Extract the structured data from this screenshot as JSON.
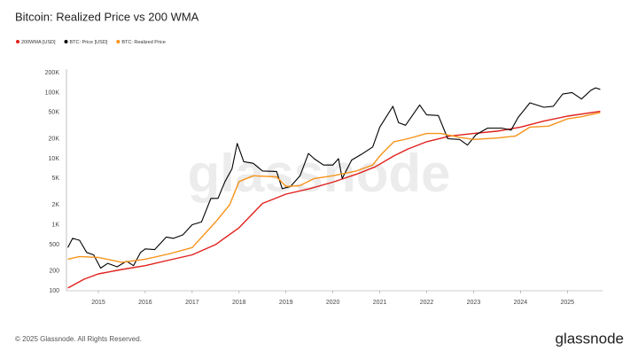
{
  "chart_data": {
    "type": "line",
    "title": "Bitcoin: Realized Price vs 200 WMA",
    "log_scale_y": true,
    "xlim": [
      2014.32,
      2025.75
    ],
    "xticks": [
      2015,
      2016,
      2017,
      2018,
      2019,
      2020,
      2021,
      2022,
      2023,
      2024,
      2025
    ],
    "ylim": [
      100,
      200000
    ],
    "yticks": [
      100,
      200,
      500,
      {
        "value": 1000,
        "label": "1K"
      },
      {
        "value": 2000,
        "label": "2K"
      },
      {
        "value": 5000,
        "label": "5K"
      },
      {
        "value": 10000,
        "label": "10K"
      },
      {
        "value": 20000,
        "label": "20K"
      },
      {
        "value": 50000,
        "label": "50K"
      },
      {
        "value": 100000,
        "label": "100K"
      },
      {
        "value": 200000,
        "label": "200K"
      }
    ],
    "series": [
      {
        "name": "200WMA [USD]",
        "color": "#e0201c",
        "x": [
          2014.35,
          2014.7,
          2015.0,
          2015.5,
          2016.0,
          2016.5,
          2017.0,
          2017.5,
          2018.0,
          2018.3,
          2018.5,
          2019.0,
          2019.5,
          2020.0,
          2020.5,
          2020.9,
          2021.3,
          2021.6,
          2022.0,
          2022.5,
          2023.0,
          2023.5,
          2024.0,
          2024.5,
          2025.0,
          2025.7
        ],
        "values": [
          110,
          150,
          180,
          210,
          240,
          290,
          350,
          500,
          900,
          1500,
          2100,
          2900,
          3500,
          4400,
          5800,
          7500,
          11000,
          14000,
          18000,
          22000,
          24000,
          26000,
          30000,
          37000,
          44000,
          52000
        ]
      },
      {
        "name": "BTC: Price [USD]",
        "color": "#000000",
        "x": [
          2014.35,
          2014.45,
          2014.6,
          2014.75,
          2014.9,
          2015.05,
          2015.2,
          2015.4,
          2015.6,
          2015.75,
          2015.9,
          2016.0,
          2016.2,
          2016.45,
          2016.6,
          2016.8,
          2017.0,
          2017.2,
          2017.4,
          2017.55,
          2017.7,
          2017.85,
          2017.96,
          2018.1,
          2018.3,
          2018.5,
          2018.8,
          2018.92,
          2019.1,
          2019.3,
          2019.48,
          2019.6,
          2019.8,
          2020.0,
          2020.12,
          2020.2,
          2020.4,
          2020.6,
          2020.85,
          2021.0,
          2021.28,
          2021.4,
          2021.55,
          2021.85,
          2022.0,
          2022.25,
          2022.45,
          2022.7,
          2022.87,
          2023.05,
          2023.3,
          2023.6,
          2023.8,
          2023.95,
          2024.2,
          2024.5,
          2024.7,
          2024.9,
          2025.1,
          2025.3,
          2025.5,
          2025.6,
          2025.7
        ],
        "values": [
          450,
          620,
          580,
          380,
          350,
          220,
          260,
          230,
          280,
          240,
          380,
          430,
          420,
          650,
          620,
          700,
          1000,
          1100,
          2500,
          2500,
          4500,
          7000,
          17000,
          9000,
          8500,
          6500,
          6400,
          3500,
          3800,
          5500,
          12000,
          10000,
          8000,
          8000,
          10000,
          5000,
          9500,
          11500,
          15000,
          30000,
          62000,
          35000,
          32000,
          65000,
          46000,
          45000,
          20000,
          19500,
          16000,
          23000,
          29000,
          29000,
          27000,
          42000,
          70000,
          60000,
          62000,
          95000,
          100000,
          80000,
          108000,
          118000,
          112000
        ]
      },
      {
        "name": "BTC: Realized Price",
        "color": "#f7931a",
        "x": [
          2014.35,
          2014.6,
          2015.0,
          2015.5,
          2016.0,
          2016.5,
          2017.0,
          2017.5,
          2017.8,
          2018.0,
          2018.3,
          2018.8,
          2019.0,
          2019.3,
          2019.6,
          2020.0,
          2020.5,
          2020.85,
          2021.0,
          2021.3,
          2021.6,
          2022.0,
          2022.3,
          2022.7,
          2023.0,
          2023.5,
          2023.9,
          2024.2,
          2024.6,
          2025.0,
          2025.3,
          2025.7
        ],
        "values": [
          300,
          330,
          320,
          270,
          300,
          360,
          450,
          1100,
          2000,
          4500,
          5500,
          5300,
          3800,
          3900,
          5000,
          5500,
          6500,
          8000,
          11000,
          18000,
          20000,
          24000,
          24000,
          21000,
          19500,
          20500,
          22000,
          30000,
          31000,
          40000,
          43000,
          50000
        ]
      }
    ],
    "watermark": "glassnode",
    "footer": "© 2025 Glassnode. All Rights Reserved.",
    "logo": "glassnode"
  }
}
